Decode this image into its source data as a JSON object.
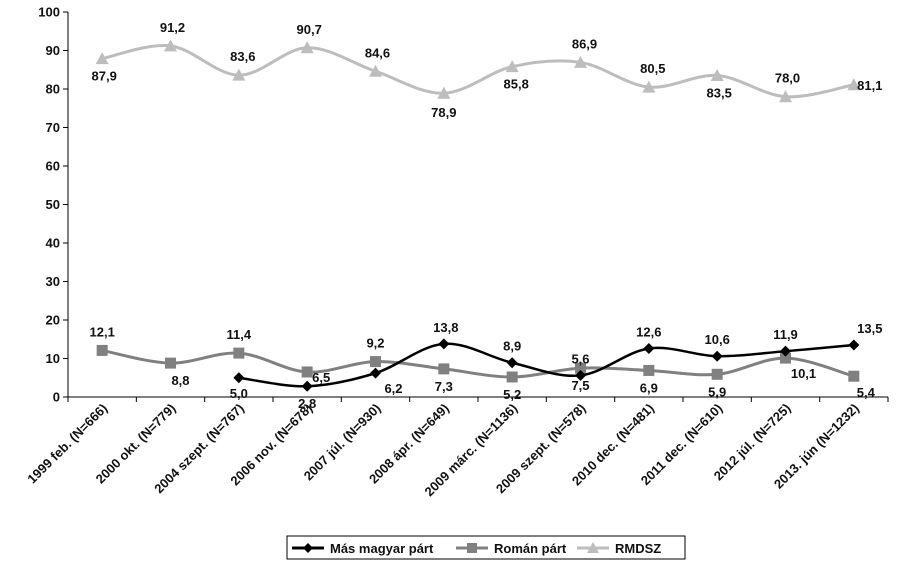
{
  "chart_data": {
    "type": "line",
    "categories": [
      "1999 feb. (N=666)",
      "2000 okt. (N=779)",
      "2004 szept. (N=767)",
      "2006 nov. (N=678)",
      "2007 júl. (N=930)",
      "2008 ápr. (N=649)",
      "2009 márc. (N=1136)",
      "2009 szept. (N=578)",
      "2010 dec. (N=481)",
      "2011 dec. (N=610)",
      "2012 júl. (N=725)",
      "2013. jún (N=1232)"
    ],
    "ylim": [
      0,
      100
    ],
    "yticks": [
      0,
      10,
      20,
      30,
      40,
      50,
      60,
      70,
      80,
      90,
      100
    ],
    "ytick_labels": [
      "0",
      "10",
      "20",
      "30",
      "40",
      "50",
      "60",
      "70",
      "80",
      "90",
      "100"
    ],
    "grid": false,
    "legend_position": "bottom",
    "series": [
      {
        "name": "Más magyar párt",
        "color": "#000000",
        "marker": "diamond",
        "values": [
          null,
          null,
          5.0,
          2.8,
          6.2,
          13.8,
          8.9,
          5.6,
          12.6,
          10.6,
          11.9,
          13.5
        ],
        "labels": [
          null,
          null,
          "5,0",
          "2,8",
          "6,2",
          "13,8",
          "8,9",
          "5,6",
          "12,6",
          "10,6",
          "11,9",
          "13,5"
        ]
      },
      {
        "name": "Román párt",
        "color": "#808080",
        "marker": "square",
        "values": [
          12.1,
          8.8,
          11.4,
          6.5,
          9.2,
          7.3,
          5.2,
          7.5,
          6.9,
          5.9,
          10.1,
          5.4
        ],
        "labels": [
          "12,1",
          "8,8",
          "11,4",
          "6,5",
          "9,2",
          "7,3",
          "5,2",
          "7,5",
          "6,9",
          "5,9",
          "10,1",
          "5,4"
        ]
      },
      {
        "name": "RMDSZ",
        "color": "#bdbdbd",
        "marker": "triangle",
        "values": [
          87.9,
          91.2,
          83.6,
          90.7,
          84.6,
          78.9,
          85.8,
          86.9,
          80.5,
          83.5,
          78.0,
          81.1
        ],
        "labels": [
          "87,9",
          "91,2",
          "83,6",
          "90,7",
          "84,6",
          "78,9",
          "85,8",
          "86,9",
          "80,5",
          "83,5",
          "78,0",
          "81,1"
        ]
      }
    ]
  }
}
